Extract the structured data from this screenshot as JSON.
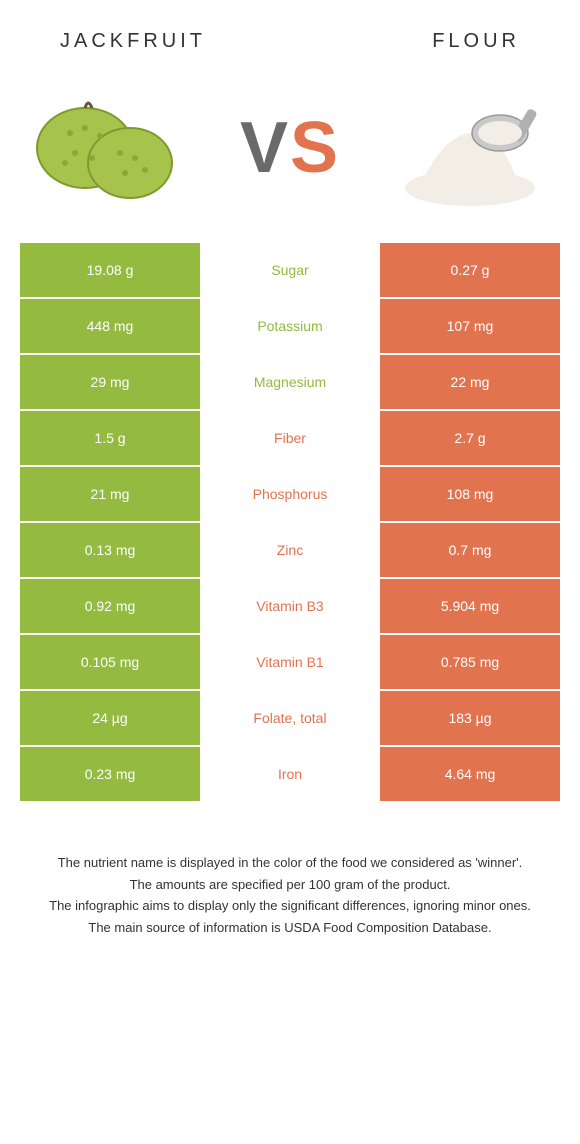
{
  "colors": {
    "green": "#94ba3f",
    "orange": "#e2734f",
    "white": "#ffffff",
    "vs_v": "#6a6a6a",
    "vs_s": "#e2734f"
  },
  "header": {
    "left": "Jackfruit",
    "right": "Flour"
  },
  "vs": {
    "v": "V",
    "s": "S"
  },
  "rows": [
    {
      "nutrient": "Sugar",
      "left": "19.08 g",
      "right": "0.27 g",
      "winner": "left"
    },
    {
      "nutrient": "Potassium",
      "left": "448 mg",
      "right": "107 mg",
      "winner": "left"
    },
    {
      "nutrient": "Magnesium",
      "left": "29 mg",
      "right": "22 mg",
      "winner": "left"
    },
    {
      "nutrient": "Fiber",
      "left": "1.5 g",
      "right": "2.7 g",
      "winner": "right"
    },
    {
      "nutrient": "Phosphorus",
      "left": "21 mg",
      "right": "108 mg",
      "winner": "right"
    },
    {
      "nutrient": "Zinc",
      "left": "0.13 mg",
      "right": "0.7 mg",
      "winner": "right"
    },
    {
      "nutrient": "Vitamin B3",
      "left": "0.92 mg",
      "right": "5.904 mg",
      "winner": "right"
    },
    {
      "nutrient": "Vitamin B1",
      "left": "0.105 mg",
      "right": "0.785 mg",
      "winner": "right"
    },
    {
      "nutrient": "Folate, total",
      "left": "24 µg",
      "right": "183 µg",
      "winner": "right"
    },
    {
      "nutrient": "Iron",
      "left": "0.23 mg",
      "right": "4.64 mg",
      "winner": "right"
    }
  ],
  "footnotes": [
    "The nutrient name is displayed in the color of the food we considered as 'winner'.",
    "The amounts are specified per 100 gram of the product.",
    "The infographic aims to display only the significant differences, ignoring minor ones.",
    "The main source of information is USDA Food Composition Database."
  ]
}
